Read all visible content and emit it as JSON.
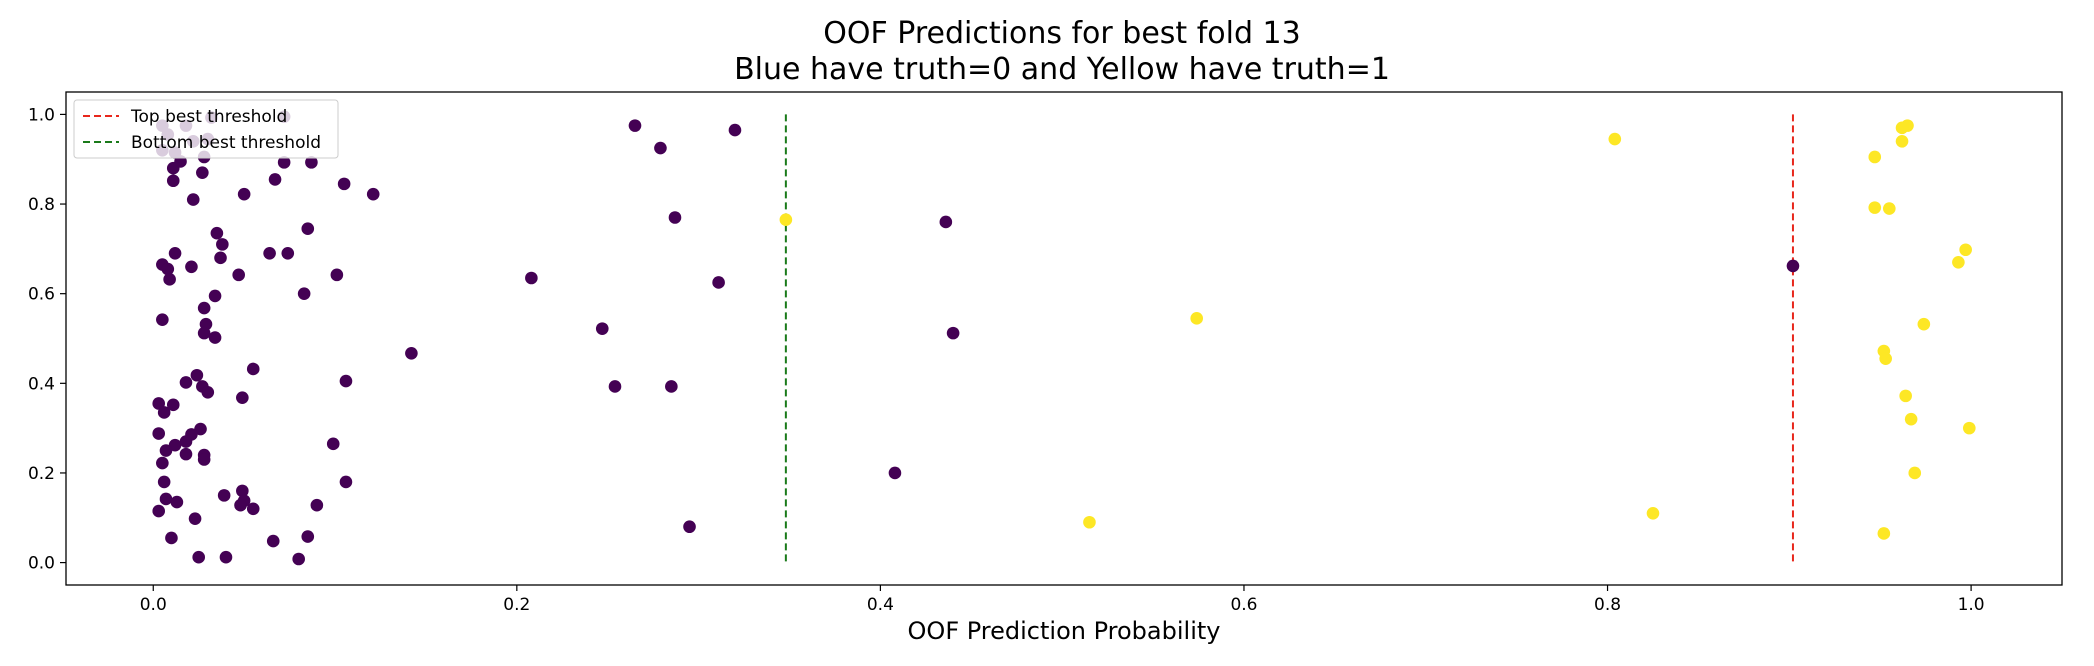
{
  "chart_data": {
    "type": "scatter",
    "title": "OOF Predictions for best fold 13",
    "subtitle": "Blue have truth=0 and Yellow have truth=1",
    "xlabel": "OOF Prediction Probability",
    "ylabel": "",
    "xlim": [
      -0.048,
      1.05
    ],
    "ylim": [
      -0.05,
      1.05
    ],
    "x_ticks": [
      "0.0",
      "0.2",
      "0.4",
      "0.6",
      "0.8",
      "1.0"
    ],
    "y_ticks": [
      "0.0",
      "0.2",
      "0.4",
      "0.6",
      "0.8",
      "1.0"
    ],
    "grid": false,
    "legend_position": "top-left",
    "colors": {
      "truth0": "#440154",
      "truth1": "#fde725",
      "top_threshold": "#e8271c",
      "bottom_threshold": "#1a7a1a"
    },
    "thresholds": [
      {
        "name": "Top best threshold",
        "x": 0.902,
        "style": "dashed",
        "color": "#e8271c"
      },
      {
        "name": "Bottom best threshold",
        "x": 0.348,
        "style": "dashed",
        "color": "#1a7a1a"
      }
    ],
    "series": [
      {
        "truth": 0,
        "points": [
          [
            0.005,
            0.975
          ],
          [
            0.018,
            0.975
          ],
          [
            0.032,
            0.993
          ],
          [
            0.072,
            0.995
          ],
          [
            0.008,
            0.955
          ],
          [
            0.022,
            0.94
          ],
          [
            0.03,
            0.945
          ],
          [
            0.005,
            0.92
          ],
          [
            0.012,
            0.915
          ],
          [
            0.028,
            0.905
          ],
          [
            0.015,
            0.895
          ],
          [
            0.072,
            0.893
          ],
          [
            0.087,
            0.893
          ],
          [
            0.011,
            0.88
          ],
          [
            0.027,
            0.87
          ],
          [
            0.067,
            0.855
          ],
          [
            0.011,
            0.852
          ],
          [
            0.105,
            0.845
          ],
          [
            0.05,
            0.822
          ],
          [
            0.121,
            0.822
          ],
          [
            0.022,
            0.81
          ],
          [
            0.085,
            0.745
          ],
          [
            0.035,
            0.735
          ],
          [
            0.038,
            0.71
          ],
          [
            0.012,
            0.69
          ],
          [
            0.064,
            0.69
          ],
          [
            0.074,
            0.69
          ],
          [
            0.037,
            0.68
          ],
          [
            0.005,
            0.665
          ],
          [
            0.021,
            0.66
          ],
          [
            0.008,
            0.655
          ],
          [
            0.047,
            0.642
          ],
          [
            0.101,
            0.642
          ],
          [
            0.009,
            0.632
          ],
          [
            0.034,
            0.595
          ],
          [
            0.083,
            0.6
          ],
          [
            0.005,
            0.542
          ],
          [
            0.028,
            0.568
          ],
          [
            0.029,
            0.532
          ],
          [
            0.028,
            0.512
          ],
          [
            0.034,
            0.502
          ],
          [
            0.055,
            0.432
          ],
          [
            0.024,
            0.418
          ],
          [
            0.018,
            0.402
          ],
          [
            0.027,
            0.393
          ],
          [
            0.03,
            0.38
          ],
          [
            0.049,
            0.368
          ],
          [
            0.106,
            0.405
          ],
          [
            0.003,
            0.355
          ],
          [
            0.011,
            0.352
          ],
          [
            0.006,
            0.335
          ],
          [
            0.003,
            0.288
          ],
          [
            0.026,
            0.298
          ],
          [
            0.021,
            0.286
          ],
          [
            0.018,
            0.27
          ],
          [
            0.012,
            0.262
          ],
          [
            0.099,
            0.265
          ],
          [
            0.007,
            0.25
          ],
          [
            0.018,
            0.242
          ],
          [
            0.028,
            0.24
          ],
          [
            0.028,
            0.23
          ],
          [
            0.005,
            0.222
          ],
          [
            0.006,
            0.18
          ],
          [
            0.106,
            0.18
          ],
          [
            0.049,
            0.16
          ],
          [
            0.039,
            0.15
          ],
          [
            0.007,
            0.142
          ],
          [
            0.013,
            0.135
          ],
          [
            0.05,
            0.138
          ],
          [
            0.048,
            0.128
          ],
          [
            0.055,
            0.12
          ],
          [
            0.09,
            0.128
          ],
          [
            0.003,
            0.115
          ],
          [
            0.023,
            0.098
          ],
          [
            0.01,
            0.055
          ],
          [
            0.085,
            0.058
          ],
          [
            0.066,
            0.048
          ],
          [
            0.025,
            0.012
          ],
          [
            0.04,
            0.012
          ],
          [
            0.08,
            0.008
          ],
          [
            0.265,
            0.975
          ],
          [
            0.32,
            0.965
          ],
          [
            0.279,
            0.925
          ],
          [
            0.287,
            0.77
          ],
          [
            0.436,
            0.76
          ],
          [
            0.208,
            0.635
          ],
          [
            0.311,
            0.625
          ],
          [
            0.902,
            0.662
          ],
          [
            0.247,
            0.522
          ],
          [
            0.44,
            0.512
          ],
          [
            0.142,
            0.467
          ],
          [
            0.254,
            0.393
          ],
          [
            0.285,
            0.393
          ],
          [
            0.408,
            0.2
          ],
          [
            0.295,
            0.08
          ]
        ]
      },
      {
        "truth": 1,
        "points": [
          [
            0.348,
            0.765
          ],
          [
            0.515,
            0.09
          ],
          [
            0.574,
            0.545
          ],
          [
            0.804,
            0.945
          ],
          [
            0.825,
            0.11
          ],
          [
            0.965,
            0.975
          ],
          [
            0.962,
            0.97
          ],
          [
            0.962,
            0.94
          ],
          [
            0.947,
            0.905
          ],
          [
            0.947,
            0.792
          ],
          [
            0.955,
            0.79
          ],
          [
            0.997,
            0.698
          ],
          [
            0.993,
            0.67
          ],
          [
            0.974,
            0.532
          ],
          [
            0.952,
            0.472
          ],
          [
            0.953,
            0.455
          ],
          [
            0.964,
            0.372
          ],
          [
            0.967,
            0.32
          ],
          [
            0.999,
            0.3
          ],
          [
            0.969,
            0.2
          ],
          [
            0.952,
            0.065
          ]
        ]
      }
    ]
  }
}
